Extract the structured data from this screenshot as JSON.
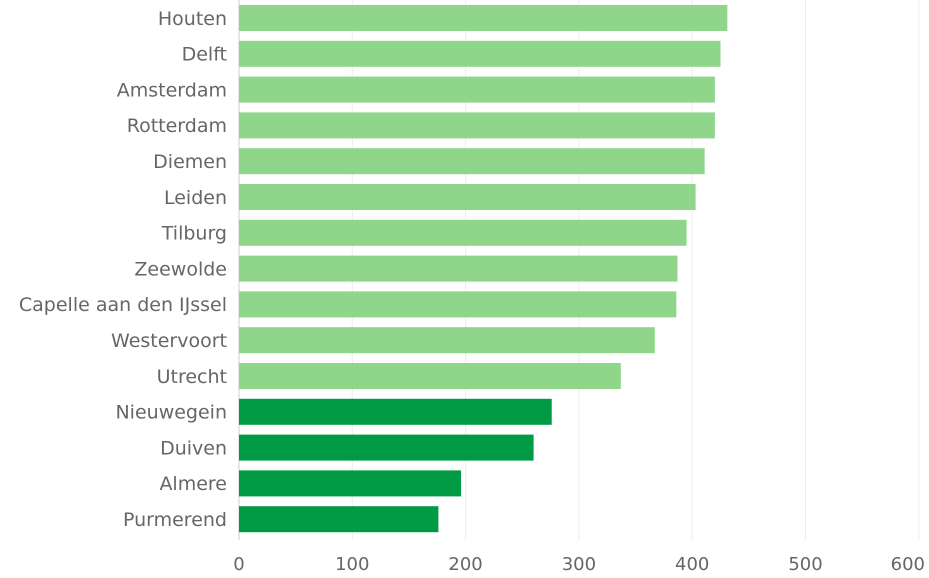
{
  "chart_data": {
    "type": "bar",
    "orientation": "horizontal",
    "title": "",
    "xlabel": "",
    "ylabel": "",
    "categories": [
      "Houten",
      "Delft",
      "Amsterdam",
      "Rotterdam",
      "Diemen",
      "Leiden",
      "Tilburg",
      "Zeewolde",
      "Capelle aan den IJssel",
      "Westervoort",
      "Utrecht",
      "Nieuwegein",
      "Duiven",
      "Almere",
      "Purmerend"
    ],
    "values": [
      431,
      425,
      420,
      420,
      411,
      403,
      395,
      387,
      386,
      367,
      337,
      276,
      260,
      196,
      176
    ],
    "xlim": [
      0,
      600
    ],
    "xticks": [
      "0",
      "100",
      "200",
      "300",
      "400",
      "500",
      "600"
    ],
    "grid": true,
    "bar_colors": [
      "#8fd68a",
      "#8fd68a",
      "#8fd68a",
      "#8fd68a",
      "#8fd68a",
      "#8fd68a",
      "#8fd68a",
      "#8fd68a",
      "#8fd68a",
      "#8fd68a",
      "#8fd68a",
      "#009a44",
      "#009a44",
      "#009a44",
      "#009a44"
    ]
  }
}
